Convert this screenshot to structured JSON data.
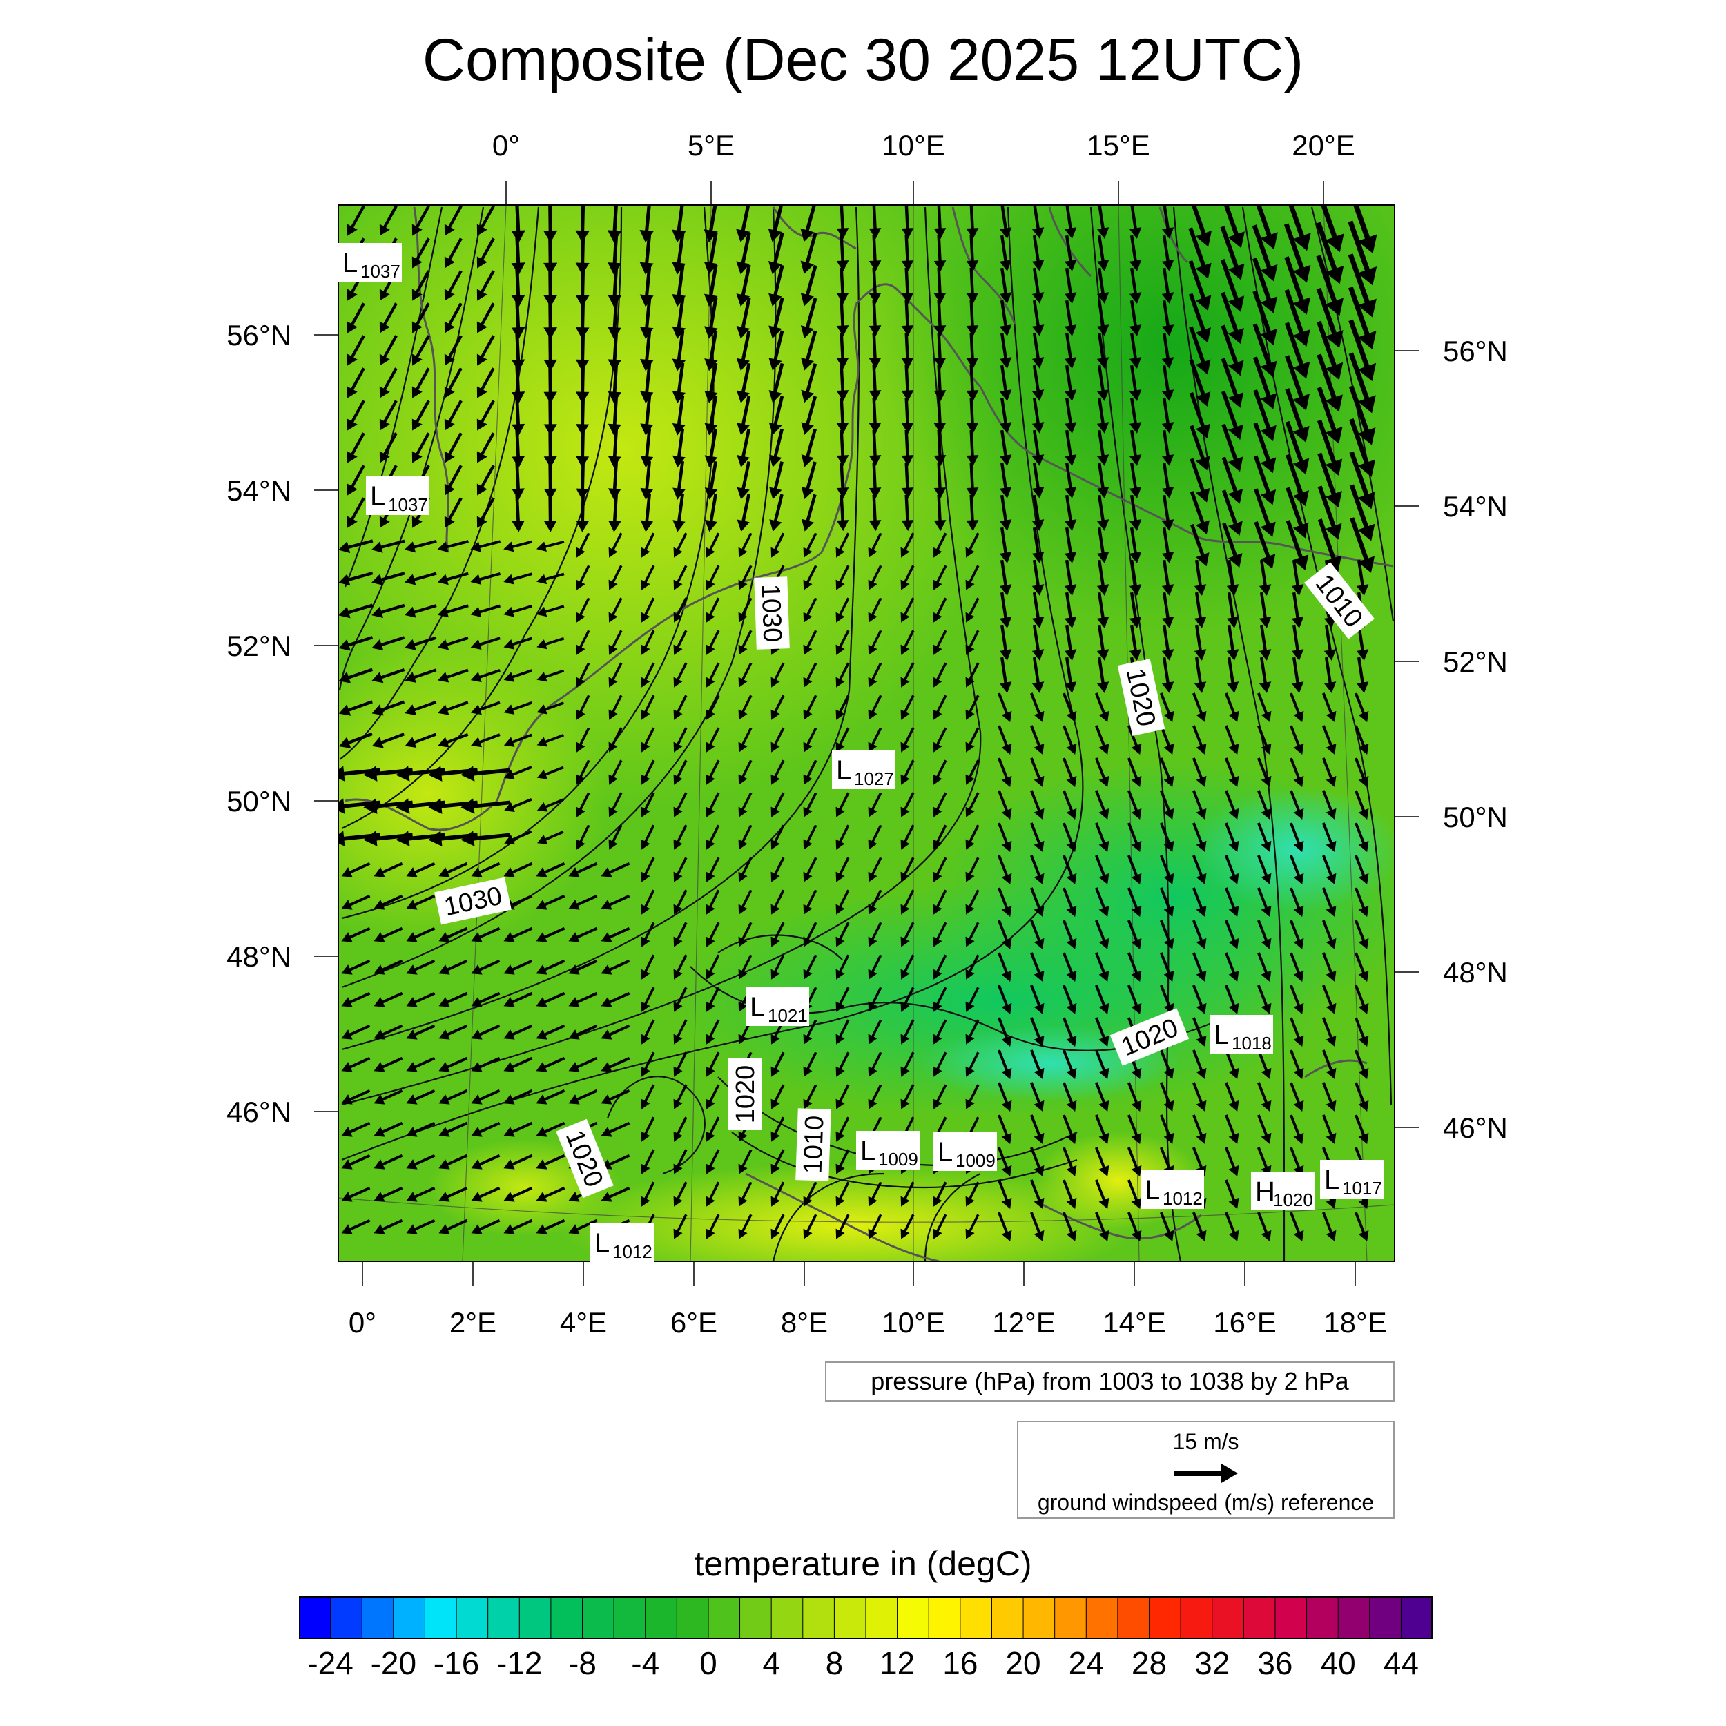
{
  "title": "Composite (Dec 30 2025 12UTC)",
  "map": {
    "top_lon_ticks": [
      "0°",
      "5°E",
      "10°E",
      "15°E",
      "20°E"
    ],
    "bottom_lon_ticks": [
      "0°",
      "2°E",
      "4°E",
      "6°E",
      "8°E",
      "10°E",
      "12°E",
      "14°E",
      "16°E",
      "18°E"
    ],
    "left_lat_ticks": [
      "56°N",
      "54°N",
      "52°N",
      "50°N",
      "48°N",
      "46°N"
    ],
    "right_lat_ticks": [
      "56°N",
      "54°N",
      "52°N",
      "50°N",
      "48°N",
      "46°N"
    ],
    "isobar_labels": [
      "1030",
      "1010",
      "1020",
      "1030",
      "1020",
      "1020",
      "1020",
      "1010"
    ],
    "pressure_centers": [
      {
        "type": "L",
        "value": "1037"
      },
      {
        "type": "L",
        "value": "1037"
      },
      {
        "type": "L",
        "value": "1027"
      },
      {
        "type": "L",
        "value": "1021"
      },
      {
        "type": "L",
        "value": "1018"
      },
      {
        "type": "L",
        "value": "1009"
      },
      {
        "type": "L",
        "value": "1009"
      },
      {
        "type": "L",
        "value": "1012"
      },
      {
        "type": "H",
        "value": "1020"
      },
      {
        "type": "L",
        "value": "1017"
      },
      {
        "type": "L",
        "value": "1012"
      }
    ],
    "colors": {
      "land_cool": "#1fb81f",
      "land_warm": "#a8dc10",
      "coast": "#555555",
      "isobar": "#000000"
    }
  },
  "pressure_note": "pressure (hPa) from 1003 to 1038 by 2 hPa",
  "wind_reference": {
    "speed": "15 m/s",
    "description": "ground windspeed (m/s) reference"
  },
  "colorbar": {
    "title": "temperature in (degC)",
    "labels": [
      "-24",
      "-20",
      "-16",
      "-12",
      "-8",
      "-4",
      "0",
      "4",
      "8",
      "12",
      "16",
      "20",
      "24",
      "28",
      "32",
      "36",
      "40",
      "44"
    ],
    "min": -26,
    "max": 46,
    "step": 2,
    "color_stops": [
      "#0000ff",
      "#00e5ff",
      "#00c060",
      "#22b422",
      "#a8dc10",
      "#ffff00",
      "#ffb000",
      "#ff2000",
      "#d00050",
      "#500090"
    ]
  }
}
